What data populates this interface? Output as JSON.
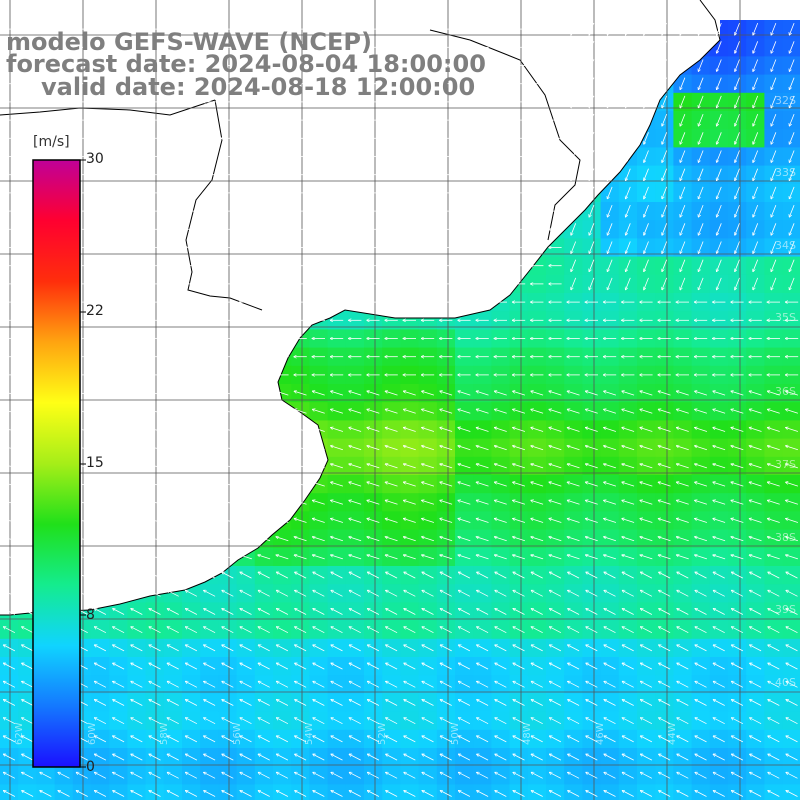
{
  "title": {
    "line1": "modelo GEFS-WAVE (NCEP)",
    "line2": "forecast date: 2024-08-04 18:00:00",
    "line3": "valid date: 2024-08-18 12:00:00"
  },
  "colorbar": {
    "unit": "[m/s]",
    "ticks": [
      {
        "label": "30",
        "value": 30
      },
      {
        "label": "22",
        "value": 22
      },
      {
        "label": "15",
        "value": 15
      },
      {
        "label": "8",
        "value": 8
      },
      {
        "label": "0",
        "value": 0
      }
    ],
    "range": [
      0,
      30
    ],
    "stops": [
      "#1a10ff",
      "#1478ff",
      "#10d4ff",
      "#14ec8e",
      "#20e01a",
      "#a6ee18",
      "#ffff16",
      "#ffa410",
      "#ff2e0c",
      "#ff0030",
      "#c00098"
    ]
  },
  "map": {
    "variable": "wind speed (m/s) with wind direction arrows",
    "lat_labels": [
      "32S",
      "33S",
      "34S",
      "35S",
      "36S",
      "37S",
      "38S",
      "39S",
      "40S"
    ],
    "lon_labels": [
      "62W",
      "60W",
      "58W",
      "56W",
      "54W",
      "52W",
      "50W",
      "48W",
      "46W",
      "44W"
    ],
    "land_color": "#ffffff",
    "coast_color": "#000000",
    "grid_color": "#555555"
  }
}
